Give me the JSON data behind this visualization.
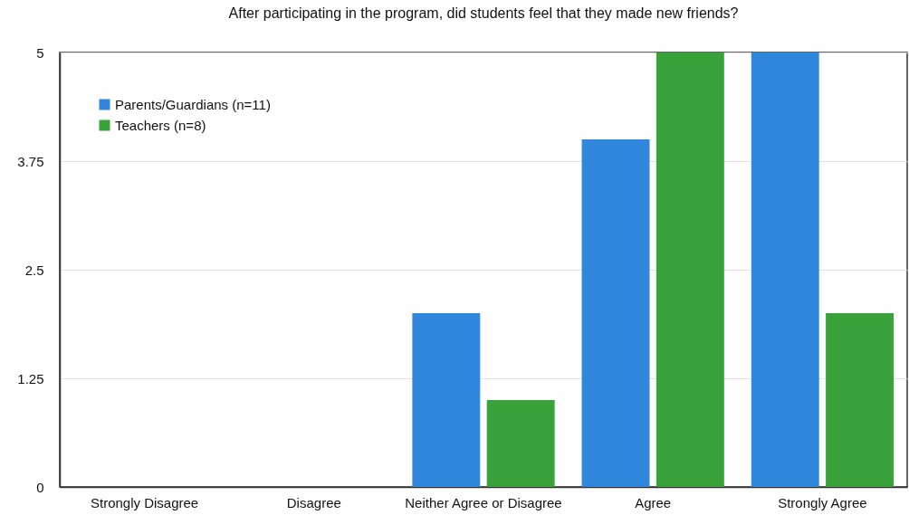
{
  "chart_data": {
    "type": "bar",
    "title": "After participating in the program, did students feel that they made new friends?",
    "categories": [
      "Strongly Disagree",
      "Disagree",
      "Neither Agree or Disagree",
      "Agree",
      "Strongly Agree"
    ],
    "series": [
      {
        "name": "Parents/Guardians (n=11)",
        "color": "#3087dc",
        "values": [
          0,
          0,
          2,
          4,
          5
        ]
      },
      {
        "name": "Teachers (n=8)",
        "color": "#3aa23a",
        "values": [
          0,
          0,
          1,
          5,
          2
        ]
      }
    ],
    "ylim": [
      0,
      5
    ],
    "yticks": [
      0,
      1.25,
      2.5,
      3.75,
      5
    ],
    "grid": "y",
    "legend": "top left"
  }
}
